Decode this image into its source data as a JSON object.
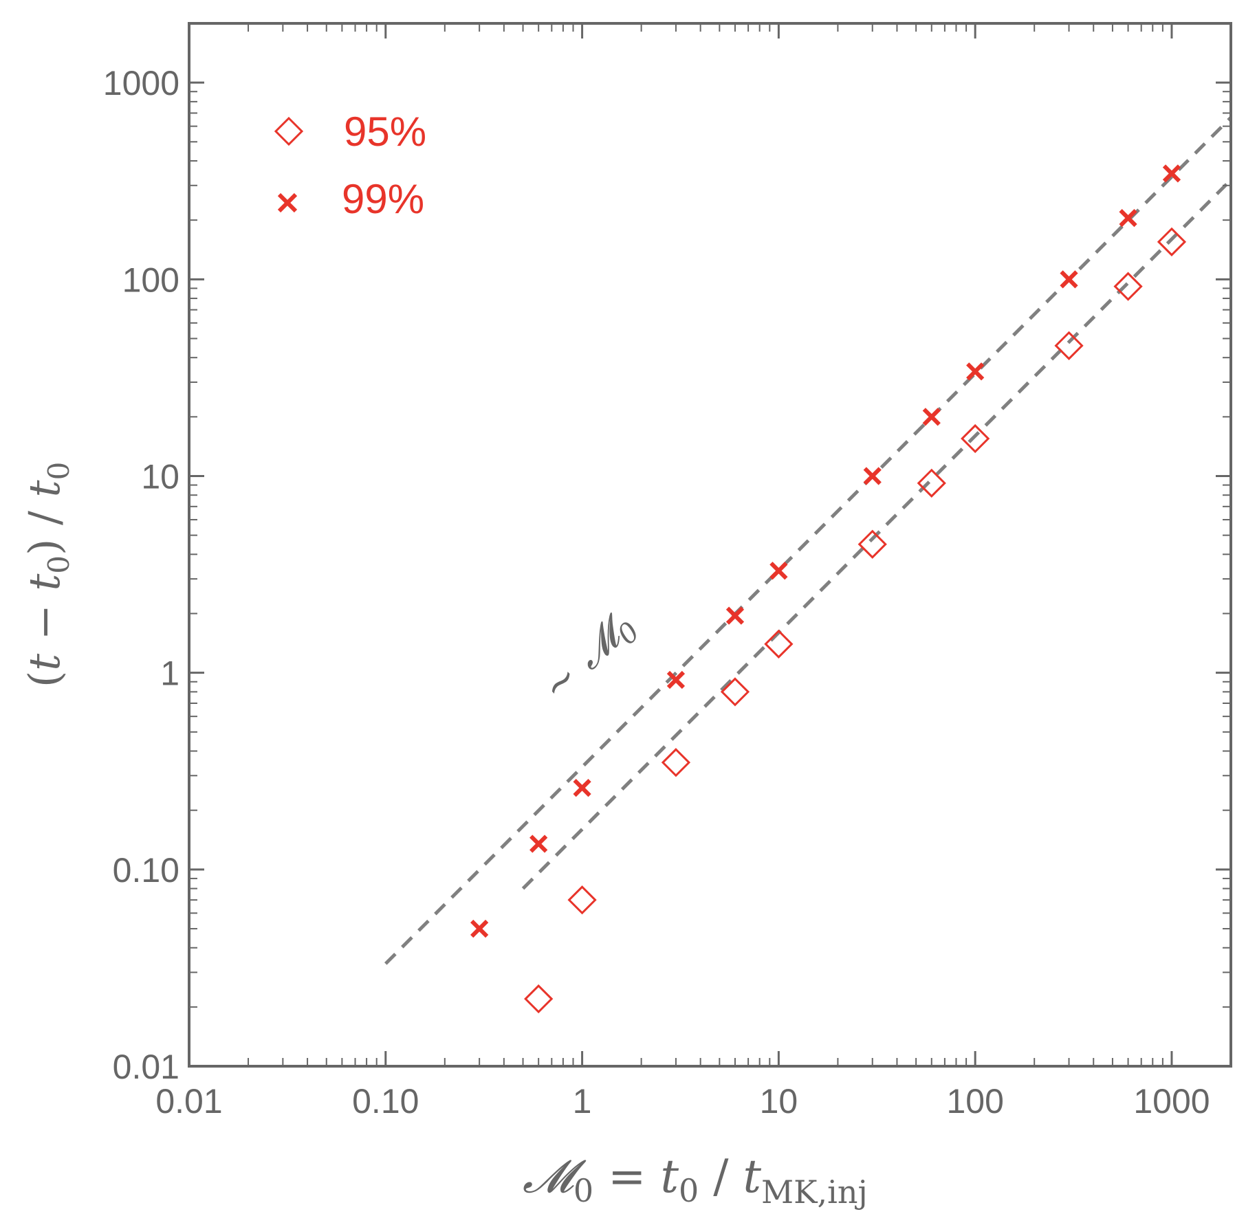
{
  "chart_data": {
    "type": "scatter",
    "x_scale": "log",
    "y_scale": "log",
    "xlim": [
      0.01,
      2000
    ],
    "ylim": [
      0.01,
      2000
    ],
    "x_ticks": [
      {
        "value": 0.01,
        "label": "0.01"
      },
      {
        "value": 0.1,
        "label": "0.10"
      },
      {
        "value": 1,
        "label": "1"
      },
      {
        "value": 10,
        "label": "10"
      },
      {
        "value": 100,
        "label": "100"
      },
      {
        "value": 1000,
        "label": "1000"
      }
    ],
    "y_ticks": [
      {
        "value": 0.01,
        "label": "0.01"
      },
      {
        "value": 0.1,
        "label": "0.10"
      },
      {
        "value": 1,
        "label": "1"
      },
      {
        "value": 10,
        "label": "10"
      },
      {
        "value": 100,
        "label": "100"
      },
      {
        "value": 1000,
        "label": "1000"
      }
    ],
    "xlabel": {
      "main": "𝓜",
      "sub0": "0",
      "eq": " = ",
      "t": "t",
      "sub1": "0",
      "slash": " / ",
      "t2": "t",
      "sub2": "MK,inj"
    },
    "ylabel": {
      "open": "(",
      "t": "t",
      "minus": " − ",
      "t0": "t",
      "sub0": "0",
      "close": ") / ",
      "t1": "t",
      "sub1": "0"
    },
    "colors": {
      "series": "#e8342a",
      "guide": "#808080",
      "axis": "#666666"
    },
    "series": [
      {
        "name": "95%",
        "marker": "diamond",
        "x": [
          0.6,
          1,
          3,
          6,
          10,
          30,
          60,
          100,
          300,
          600,
          1000
        ],
        "y": [
          0.022,
          0.07,
          0.35,
          0.8,
          1.4,
          4.5,
          9.2,
          15.5,
          46,
          92,
          155
        ]
      },
      {
        "name": "99%",
        "marker": "x",
        "x": [
          0.3,
          0.6,
          1,
          3,
          6,
          10,
          30,
          60,
          100,
          300,
          600,
          1000
        ],
        "y": [
          0.05,
          0.135,
          0.26,
          0.92,
          1.95,
          3.3,
          10,
          20,
          34,
          100,
          205,
          345
        ]
      }
    ],
    "guide_lines": [
      {
        "name": "upper",
        "style": "dashed",
        "x": [
          0.1,
          2000
        ],
        "y": [
          0.0332,
          664
        ]
      },
      {
        "name": "lower",
        "style": "dashed",
        "x": [
          0.5,
          2000
        ],
        "y": [
          0.08,
          320
        ]
      }
    ],
    "annotation": {
      "text": "~ 𝓜",
      "sub": "0",
      "x": 0.75,
      "y": 0.7,
      "rotation": -44
    },
    "legend": {
      "position": "top-left",
      "items": [
        {
          "label": "95%",
          "marker": "diamond"
        },
        {
          "label": "99%",
          "marker": "x"
        }
      ]
    }
  }
}
